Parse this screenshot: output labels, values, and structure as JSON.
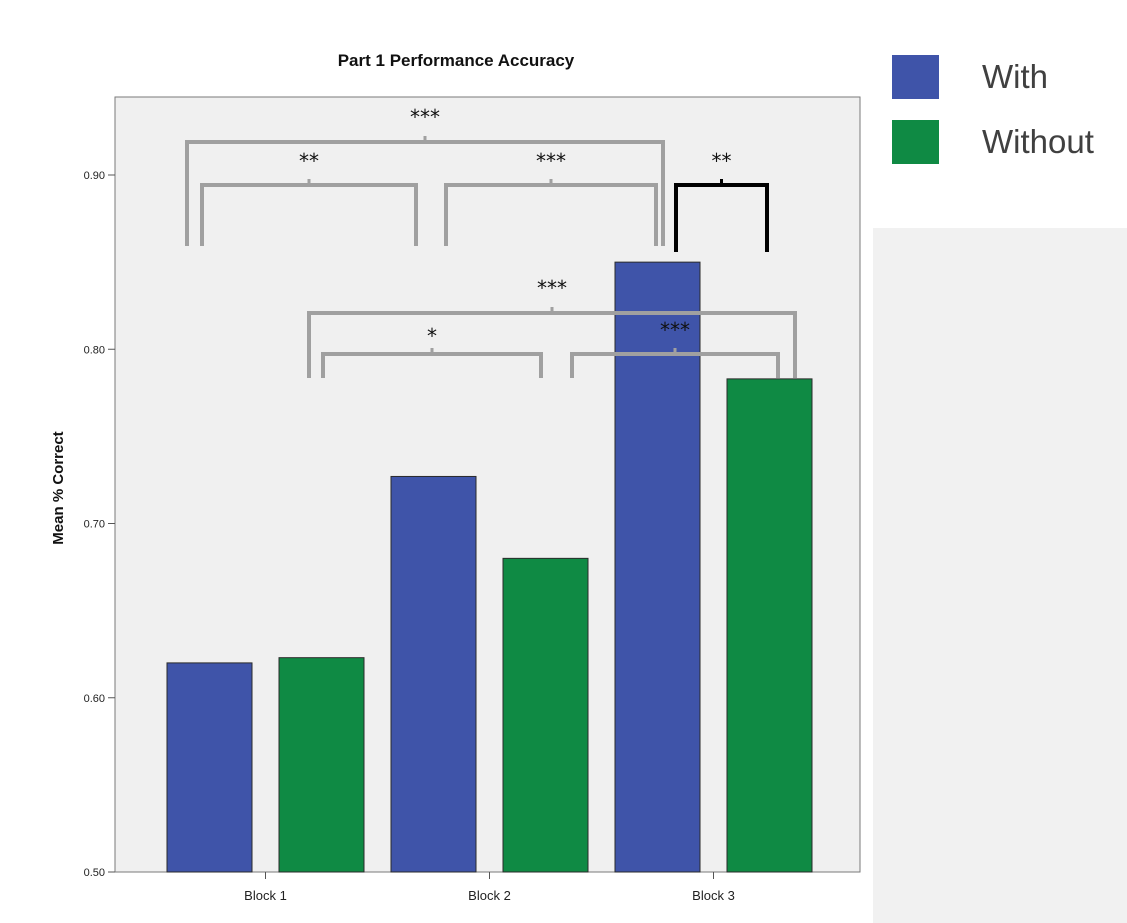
{
  "chart_data": {
    "type": "bar",
    "title": "Part 1 Performance Accuracy",
    "xlabel": "",
    "ylabel": "Mean % Correct",
    "categories": [
      "Block 1",
      "Block 2",
      "Block 3"
    ],
    "ylim": [
      0.5,
      0.94
    ],
    "yticks": [
      "0.50",
      "0.60",
      "0.70",
      "0.80",
      "0.90"
    ],
    "grid": false,
    "legend_placement": "top-right",
    "series": [
      {
        "name": "With",
        "color": "#3f54a9",
        "values": [
          0.62,
          0.727,
          0.85
        ]
      },
      {
        "name": "Without",
        "color": "#0f8a44",
        "values": [
          0.623,
          0.68,
          0.783
        ]
      }
    ],
    "annotations": [
      {
        "label": "***",
        "from": "Block 1 · With",
        "to": "Block 3 · With",
        "color": "#a0a0a0"
      },
      {
        "label": "**",
        "from": "Block 1 · With",
        "to": "Block 2 · Without",
        "color": "#a0a0a0"
      },
      {
        "label": "***",
        "from": "Block 2 · With",
        "to": "Block 3 · With",
        "color": "#a0a0a0"
      },
      {
        "label": "**",
        "from": "Block 3 · With",
        "to": "Block 3 · Without",
        "color": "#000000"
      },
      {
        "label": "***",
        "from": "Block 1 · Without",
        "to": "Block 3 · Without",
        "color": "#a0a0a0"
      },
      {
        "label": "*",
        "from": "Block 1 · Without",
        "to": "Block 2 · Without",
        "color": "#a0a0a0"
      },
      {
        "label": "***",
        "from": "Block 2 · Without",
        "to": "Block 3 · Without",
        "color": "#a0a0a0"
      }
    ]
  },
  "legend": {
    "items": [
      {
        "label": "With",
        "color": "#3f54a9"
      },
      {
        "label": "Without",
        "color": "#0f8a44"
      }
    ]
  }
}
